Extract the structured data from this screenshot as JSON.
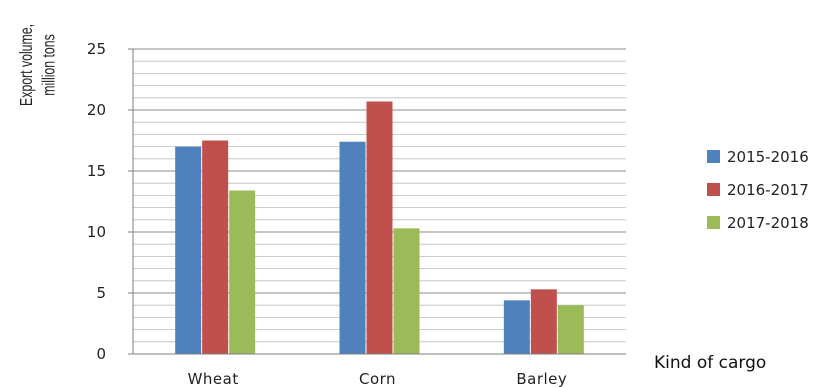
{
  "chart_data": {
    "type": "bar",
    "title": "",
    "ylabel_lines": [
      "Export volume,",
      "million tons"
    ],
    "xlabel": "Kind of cargo",
    "categories": [
      "Wheat",
      "Corn",
      "Barley"
    ],
    "series": [
      {
        "name": "2015-2016",
        "color": "#4f81bd",
        "values": [
          17.0,
          17.4,
          4.4
        ]
      },
      {
        "name": "2016-2017",
        "color": "#c0504d",
        "values": [
          17.5,
          20.7,
          5.3
        ]
      },
      {
        "name": "2017-2018",
        "color": "#9bbb59",
        "values": [
          13.4,
          10.3,
          4.0
        ]
      }
    ],
    "ylim": [
      0,
      25
    ],
    "yticks": [
      0,
      5,
      10,
      15,
      20,
      25
    ],
    "minor_step": 1,
    "grid": true,
    "legend_position": "right"
  }
}
